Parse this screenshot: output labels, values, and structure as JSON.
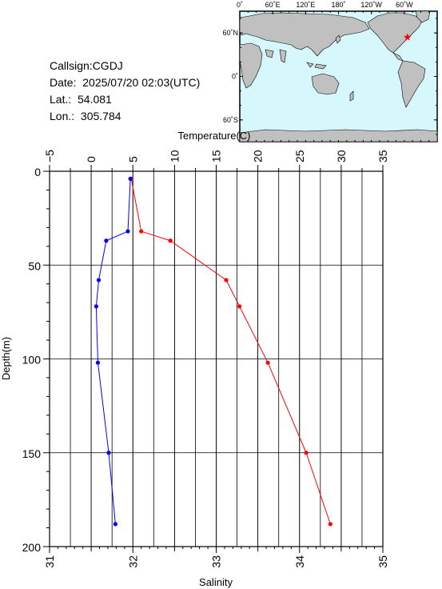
{
  "info": {
    "callsign": "Callsign:CGDJ",
    "date": "Date:  2025/07/20 02:03(UTC)",
    "lat": "Lat.:  54.081",
    "lon": "Lon.:  305.784"
  },
  "map": {
    "top_labels": [
      "0˚",
      "60˚E",
      "120˚E",
      "180˚",
      "120˚W",
      "60˚W"
    ],
    "lat_labels": [
      "60˚N",
      "0˚",
      "60˚S"
    ],
    "ocean_color": "#d6f7fb",
    "land_color": "#c0c0c0",
    "marker_color": "#ff0000",
    "station": {
      "lat": 54.081,
      "lon": 305.784
    }
  },
  "chart_data": {
    "type": "line",
    "ylabel": "Depth(m)",
    "y_axis": {
      "range": [
        0,
        200
      ],
      "inverted": true,
      "ticks": [
        "0",
        "50",
        "100",
        "150",
        "200"
      ]
    },
    "temperature_axis": {
      "label": "Temperature(C)",
      "range": [
        -5,
        35
      ],
      "ticks": [
        "−5",
        "0",
        "5",
        "10",
        "15",
        "20",
        "25",
        "30",
        "35"
      ]
    },
    "salinity_axis": {
      "label": "Salinity",
      "range": [
        31,
        35
      ],
      "ticks": [
        "31",
        "32",
        "33",
        "34",
        "35"
      ]
    },
    "grid": true,
    "series": [
      {
        "axis": "temperature",
        "color": "#ff0000",
        "points": [
          {
            "value": 4.8,
            "depth": 4
          },
          {
            "value": 6.0,
            "depth": 32
          },
          {
            "value": 9.5,
            "depth": 37
          },
          {
            "value": 16.2,
            "depth": 58
          },
          {
            "value": 17.8,
            "depth": 72
          },
          {
            "value": 21.2,
            "depth": 102
          },
          {
            "value": 25.8,
            "depth": 150
          },
          {
            "value": 28.7,
            "depth": 188
          }
        ]
      },
      {
        "axis": "salinity",
        "color": "#0000ff",
        "points": [
          {
            "value": 31.97,
            "depth": 4
          },
          {
            "value": 31.94,
            "depth": 32
          },
          {
            "value": 31.68,
            "depth": 37
          },
          {
            "value": 31.59,
            "depth": 58
          },
          {
            "value": 31.56,
            "depth": 72
          },
          {
            "value": 31.58,
            "depth": 102
          },
          {
            "value": 31.71,
            "depth": 150
          },
          {
            "value": 31.79,
            "depth": 188
          }
        ]
      }
    ]
  }
}
